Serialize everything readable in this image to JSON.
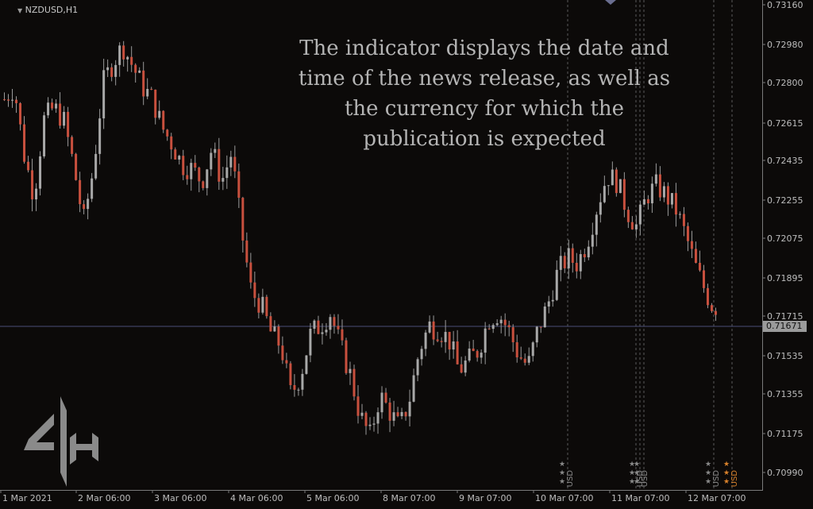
{
  "symbol_label": "NZDUSD,H1",
  "overlay_text": [
    "The indicator displays the date and",
    "time of the news release, as well as",
    "the currency for which the",
    "publication is expected"
  ],
  "price_axis": [
    "0.73160",
    "0.72980",
    "0.72800",
    "0.72615",
    "0.72435",
    "0.72255",
    "0.72075",
    "0.71895",
    "0.71715",
    "0.71535",
    "0.71355",
    "0.71175",
    "0.70990"
  ],
  "current_price": "0.71671",
  "time_axis": [
    "1 Mar 2021",
    "2 Mar 06:00",
    "3 Mar 06:00",
    "4 Mar 06:00",
    "5 Mar 06:00",
    "8 Mar 07:00",
    "9 Mar 07:00",
    "10 Mar 07:00",
    "11 Mar 07:00",
    "12 Mar 07:00"
  ],
  "news_markers": [
    {
      "currency": "USD",
      "stars": "★★★",
      "color": "#8a8a8a"
    },
    {
      "currency": "USD",
      "stars": "★★★",
      "color": "#8a8a8a"
    },
    {
      "currency": "USD",
      "stars": "★★★",
      "color": "#8a8a8a"
    },
    {
      "currency": "USD",
      "stars": "★★★",
      "color": "#8a8a8a"
    },
    {
      "currency": "USD",
      "stars": "★★★",
      "color": "#d9822b"
    }
  ],
  "colors": {
    "background": "#0c0a09",
    "bull_candle": "#a8a8a8",
    "bear_candle": "#c8503e",
    "current_price_line": "#4a4f78",
    "news_line": "#5a5a5a"
  },
  "chart_data": {
    "type": "candlestick",
    "symbol": "NZDUSD",
    "timeframe": "H1",
    "current_price": 0.71671,
    "ylim": [
      0.709,
      0.7318
    ],
    "close_path": [
      0.7272,
      0.7278,
      0.7245,
      0.7225,
      0.7262,
      0.7268,
      0.7262,
      0.724,
      0.7212,
      0.7238,
      0.728,
      0.729,
      0.7298,
      0.7288,
      0.7278,
      0.7272,
      0.7258,
      0.725,
      0.724,
      0.7238,
      0.7232,
      0.7248,
      0.7232,
      0.7246,
      0.7208,
      0.7178,
      0.7172,
      0.7158,
      0.7152,
      0.7128,
      0.7138,
      0.7158,
      0.7162,
      0.7168,
      0.7152,
      0.7138,
      0.7118,
      0.7108,
      0.7128,
      0.712,
      0.7112,
      0.7126,
      0.715,
      0.7162,
      0.716,
      0.7155,
      0.714,
      0.7145,
      0.715,
      0.7165,
      0.7168,
      0.716,
      0.7148,
      0.7142,
      0.716,
      0.7172,
      0.7188,
      0.7195,
      0.7192,
      0.7203,
      0.722,
      0.7235,
      0.7232,
      0.7218,
      0.721,
      0.7225,
      0.723,
      0.7225,
      0.7218,
      0.7205,
      0.719,
      0.7178,
      0.7168
    ]
  }
}
